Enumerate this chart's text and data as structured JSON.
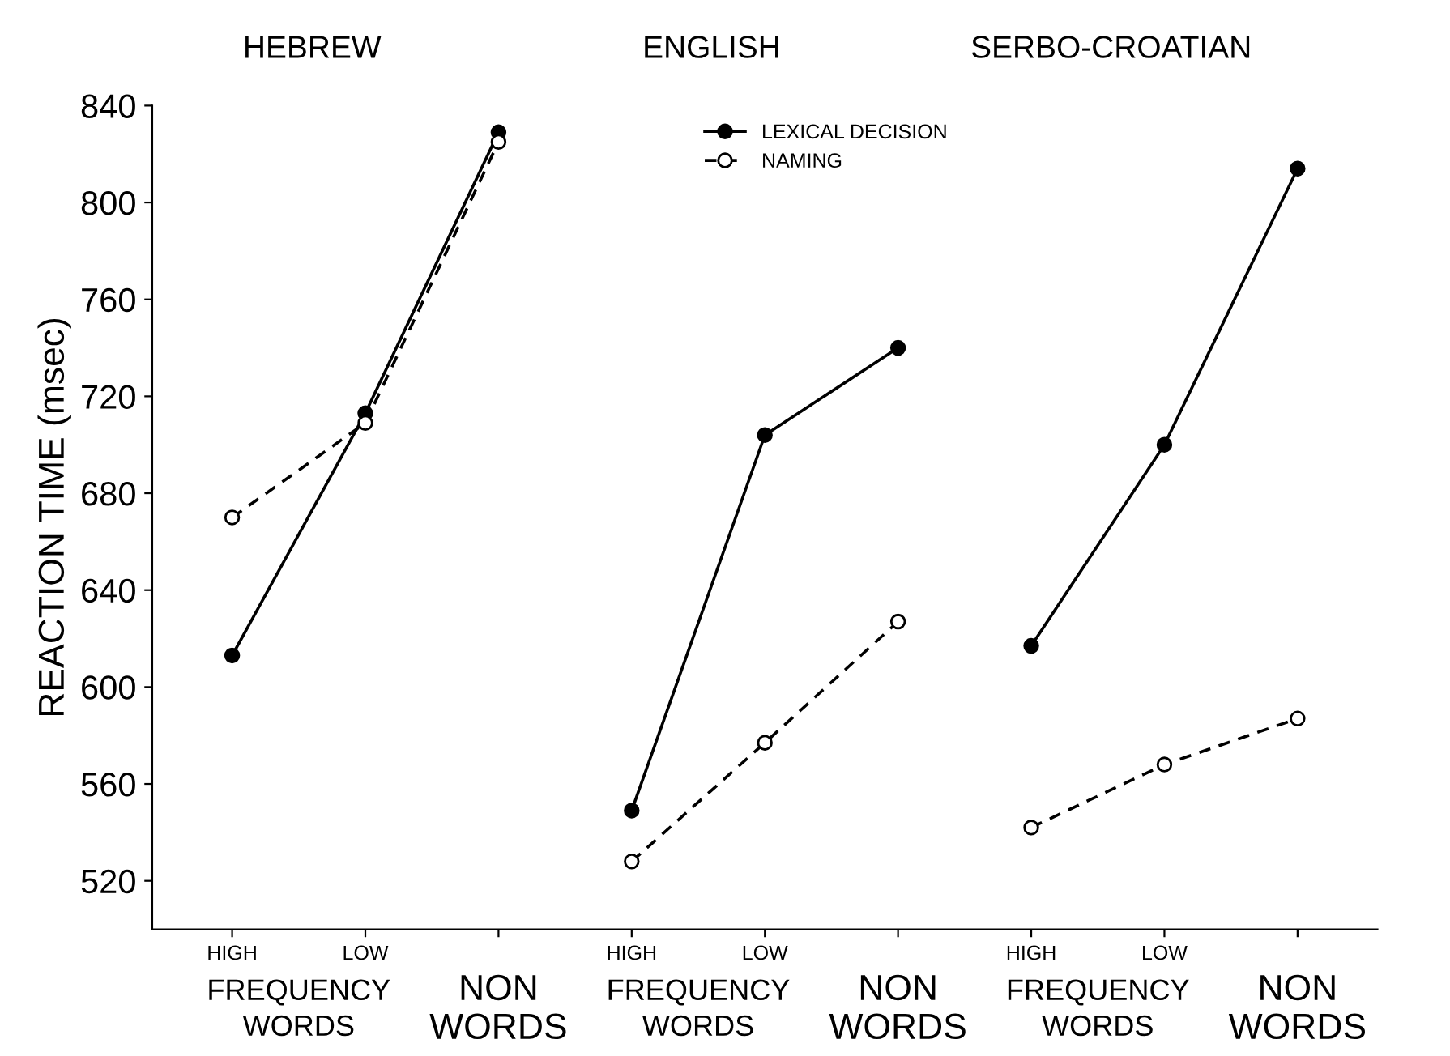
{
  "chart_data": {
    "type": "line",
    "ylabel": "REACTION TIME (msec)",
    "categories": [
      "HIGH",
      "LOW",
      "NON\nWORDS",
      "HIGH",
      "LOW",
      "NON\nWORDS",
      "HIGH",
      "LOW",
      "NON\nWORDS"
    ],
    "series": [
      {
        "name": "LEXICAL DECISION",
        "color": "#000000",
        "line_style": "solid",
        "marker": "circle",
        "values": [
          613,
          713,
          829,
          null,
          null,
          null,
          null,
          null,
          null
        ]
      },
      {
        "name": "NAMING",
        "color": "#000000",
        "line_style": "dashed",
        "marker": "circle",
        "values": [
          670,
          709,
          825,
          null,
          null,
          null,
          null,
          null,
          null
        ]
      },
      {
        "color": "#000000",
        "line_style": "solid",
        "marker": "circle",
        "values": [
          null,
          null,
          null,
          549,
          704,
          740,
          null,
          null,
          null
        ]
      },
      {
        "color": "#000000",
        "line_style": "dashed",
        "marker": "circle",
        "values": [
          null,
          null,
          null,
          528,
          577,
          627,
          null,
          null,
          null
        ]
      },
      {
        "color": "#000000",
        "line_style": "solid",
        "marker": "circle",
        "values": [
          null,
          null,
          null,
          null,
          null,
          null,
          617,
          700,
          814
        ]
      },
      {
        "color": "#000000",
        "line_style": "dashed",
        "marker": "circle",
        "values": [
          null,
          null,
          null,
          null,
          null,
          null,
          542,
          568,
          587
        ]
      }
    ],
    "ylim": [
      500,
      840
    ],
    "yticks": [
      520,
      560,
      600,
      640,
      680,
      720,
      760,
      800,
      840
    ],
    "grid": false,
    "legend": "top",
    "annotations": [
      "HEBREW",
      "ENGLISH",
      "SERBO-CROATIAN",
      "FREQUENCY\nWORDS",
      "FREQUENCY\nWORDS",
      "FREQUENCY\nWORDS"
    ]
  }
}
